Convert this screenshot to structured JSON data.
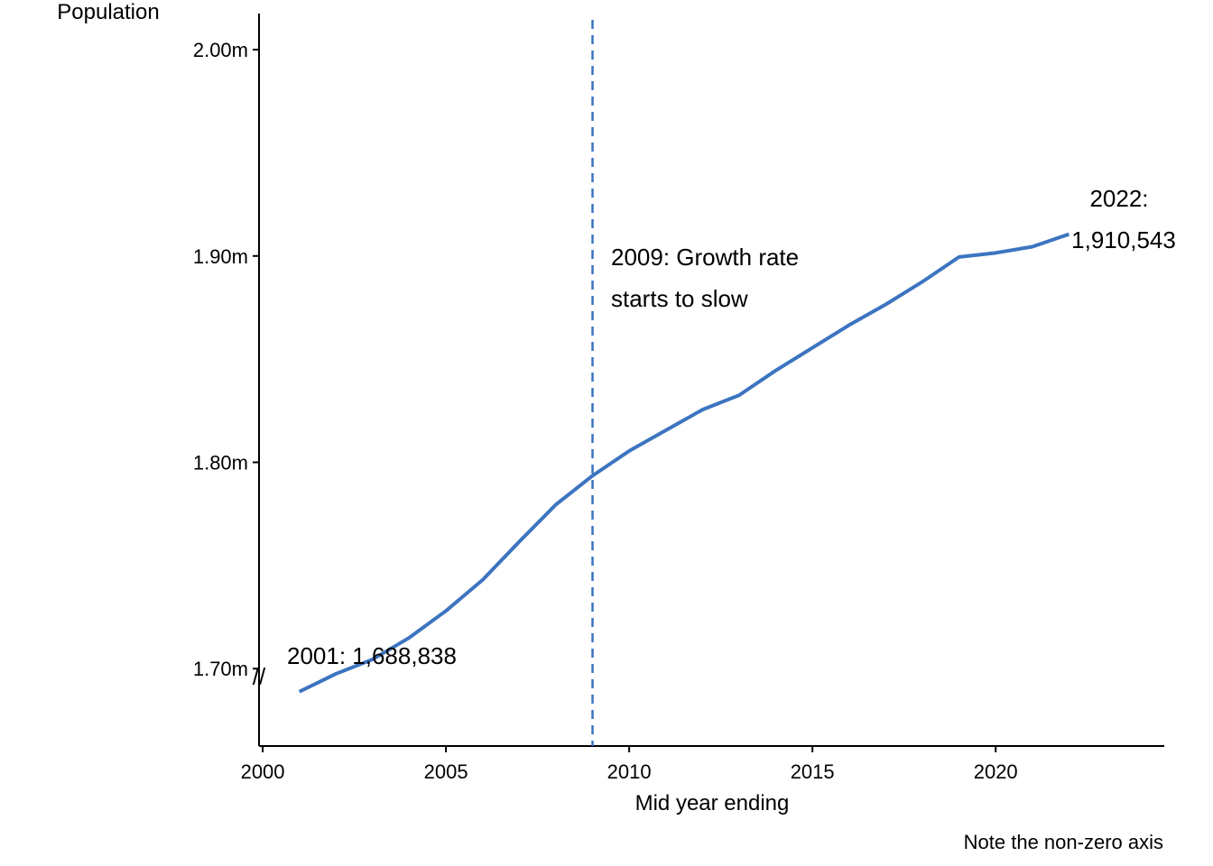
{
  "chart_data": {
    "type": "line",
    "y_axis_title": "Population",
    "x_axis_title": "Mid year ending",
    "caption": "Note the non-zero axis",
    "axis_break_symbol": "//",
    "xlim": [
      1999.9,
      2024.6
    ],
    "ylim": [
      1.6625,
      2.0175
    ],
    "x_ticks": [
      2000,
      2005,
      2010,
      2015,
      2020
    ],
    "x_tick_labels": [
      "2000",
      "2005",
      "2010",
      "2015",
      "2020"
    ],
    "y_ticks": [
      1.7,
      1.8,
      1.9,
      2.0
    ],
    "y_tick_labels": [
      "1.70m",
      "1.80m",
      "1.90m",
      "2.00m"
    ],
    "grid": false,
    "line_color": "#3c74c0",
    "reference_line": {
      "x": 2009,
      "style": "dashed",
      "color": "#3c74c0"
    },
    "series": [
      {
        "x": [
          2001,
          2002,
          2003,
          2004,
          2005,
          2006,
          2007,
          2008,
          2009,
          2010,
          2011,
          2012,
          2013,
          2014,
          2015,
          2016,
          2017,
          2018,
          2019,
          2020,
          2021,
          2022
        ],
        "values": [
          1.688838,
          1.6975,
          1.7045,
          1.715,
          1.728,
          1.743,
          1.7615,
          1.7795,
          1.7935,
          1.8055,
          1.8155,
          1.8255,
          1.8325,
          1.8445,
          1.8555,
          1.8665,
          1.8765,
          1.8875,
          1.8995,
          1.9015,
          1.9045,
          1.910543
        ]
      }
    ],
    "annotations": {
      "start": {
        "text": "2001: 1,688,838"
      },
      "end": {
        "line1": "2022:",
        "line2": "1,910,543"
      },
      "slowdown": {
        "line1": "2009: Growth rate",
        "line2": "starts to slow"
      }
    }
  }
}
